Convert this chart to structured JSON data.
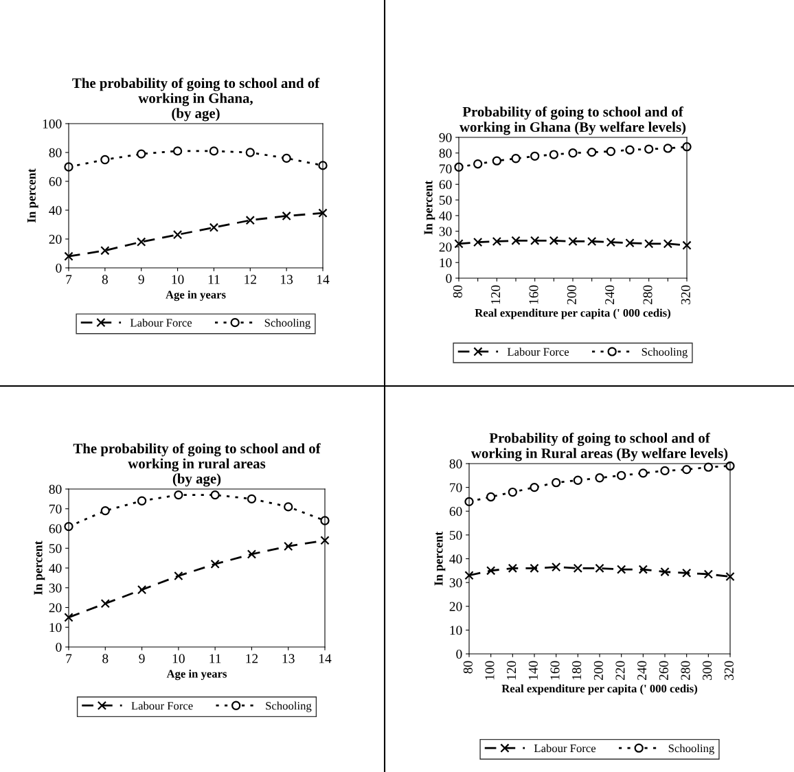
{
  "chart_data": [
    {
      "type": "line",
      "title": "The probability of going to school and of\nworking in Ghana,\n(by age)",
      "xlabel": "Age in years",
      "ylabel": "In percent",
      "x": [
        7,
        8,
        9,
        10,
        11,
        12,
        13,
        14
      ],
      "xlim": [
        7,
        14
      ],
      "xticks": [
        7,
        8,
        9,
        10,
        11,
        12,
        13,
        14
      ],
      "ylim": [
        0,
        100
      ],
      "yticks": [
        0,
        20,
        40,
        60,
        80,
        100
      ],
      "legend": "bottom",
      "grid": false,
      "series": [
        {
          "name": "Labour Force",
          "color": "#000000",
          "marker": "cross",
          "line_style": "dashed",
          "values": [
            8,
            12,
            18,
            23,
            28,
            33,
            36,
            38
          ]
        },
        {
          "name": "Schooling",
          "color": "#000000",
          "marker": "circle",
          "line_style": "dotted",
          "values": [
            70,
            75,
            79,
            81,
            81,
            80,
            76,
            71
          ]
        }
      ]
    },
    {
      "type": "line",
      "title": "Probability of going to school and of\nworking in Ghana (By welfare levels)",
      "xlabel": "Real expenditure per capita (' 000 cedis)",
      "ylabel": "In percent",
      "x": [
        80,
        100,
        120,
        140,
        160,
        180,
        200,
        220,
        240,
        260,
        280,
        300,
        320
      ],
      "xlim": [
        80,
        320
      ],
      "xticks": [
        80,
        {
          "value": 100,
          "label": null
        },
        120,
        {
          "value": 140,
          "label": null
        },
        160,
        {
          "value": 180,
          "label": null
        },
        200,
        {
          "value": 220,
          "label": null
        },
        240,
        {
          "value": 260,
          "label": null
        },
        280,
        {
          "value": 300,
          "label": null
        },
        320
      ],
      "ylim": [
        0,
        90
      ],
      "yticks": [
        0,
        10,
        20,
        30,
        40,
        50,
        60,
        70,
        80,
        90
      ],
      "legend": "bottom",
      "grid": false,
      "series": [
        {
          "name": "Labour Force",
          "color": "#000000",
          "marker": "cross",
          "line_style": "dashed",
          "values": [
            22,
            23,
            23.5,
            24,
            24,
            24,
            23.5,
            23.5,
            23,
            22.5,
            22,
            22,
            21
          ]
        },
        {
          "name": "Schooling",
          "color": "#000000",
          "marker": "circle",
          "line_style": "dotted",
          "values": [
            71,
            73,
            75,
            76.5,
            78,
            79,
            80,
            80.5,
            81,
            82,
            82.5,
            83,
            84
          ]
        }
      ]
    },
    {
      "type": "line",
      "title": "The probability of going to school and of\nworking in rural areas\n(by age)",
      "xlabel": "Age in years",
      "ylabel": "In percent",
      "x": [
        7,
        8,
        9,
        10,
        11,
        12,
        13,
        14
      ],
      "xlim": [
        7,
        14
      ],
      "xticks": [
        7,
        8,
        9,
        10,
        11,
        12,
        13,
        14
      ],
      "ylim": [
        0,
        80
      ],
      "yticks": [
        0,
        10,
        20,
        30,
        40,
        50,
        60,
        70,
        80
      ],
      "legend": "bottom",
      "grid": false,
      "series": [
        {
          "name": "Labour Force",
          "color": "#000000",
          "marker": "cross",
          "line_style": "dashed",
          "values": [
            15,
            22,
            29,
            36,
            42,
            47,
            51,
            54
          ]
        },
        {
          "name": "Schooling",
          "color": "#000000",
          "marker": "circle",
          "line_style": "dotted",
          "values": [
            61,
            69,
            74,
            77,
            77,
            75,
            71,
            64
          ]
        }
      ]
    },
    {
      "type": "line",
      "title": "Probability of going to school and of\nworking in Rural areas (By welfare levels)",
      "xlabel": "Real expenditure per capita (' 000 cedis)",
      "ylabel": "In percent",
      "x": [
        80,
        100,
        120,
        140,
        160,
        180,
        200,
        220,
        240,
        260,
        280,
        300,
        320
      ],
      "xlim": [
        80,
        320
      ],
      "xticks": [
        80,
        100,
        120,
        140,
        160,
        180,
        200,
        220,
        240,
        260,
        280,
        300,
        320
      ],
      "ylim": [
        0,
        80
      ],
      "yticks": [
        0,
        10,
        20,
        30,
        40,
        50,
        60,
        70,
        80
      ],
      "legend": "bottom",
      "grid": false,
      "series": [
        {
          "name": "Labour Force",
          "color": "#000000",
          "marker": "cross",
          "line_style": "dashed",
          "values": [
            33,
            35,
            36,
            36,
            36.5,
            36,
            36,
            35.5,
            35.5,
            34.5,
            34,
            33.5,
            32.5
          ]
        },
        {
          "name": "Schooling",
          "color": "#000000",
          "marker": "circle",
          "line_style": "dotted",
          "values": [
            64,
            66,
            68,
            70,
            72,
            73,
            74,
            75,
            76,
            77,
            77.5,
            78.5,
            79
          ]
        }
      ]
    }
  ]
}
